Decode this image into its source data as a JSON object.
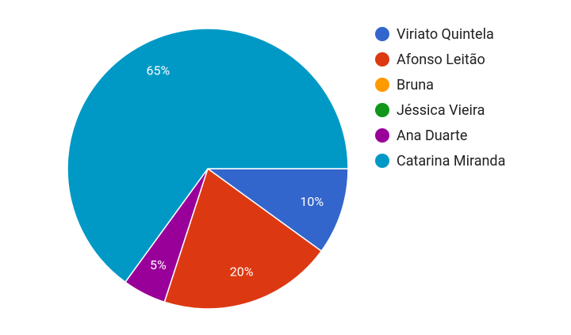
{
  "chart_data": {
    "type": "pie",
    "categories": [
      "Viriato Quintela",
      "Afonso Leitão",
      "Bruna",
      "Jéssica Vieira",
      "Ana Duarte",
      "Catarina Miranda"
    ],
    "values": [
      10,
      20,
      0,
      0,
      5,
      65
    ],
    "value_labels": [
      "10%",
      "20%",
      null,
      null,
      "5%",
      "65%"
    ],
    "colors": [
      "#3366cc",
      "#dc3912",
      "#ff9900",
      "#109618",
      "#990099",
      "#0099c6"
    ],
    "legend": "right"
  }
}
